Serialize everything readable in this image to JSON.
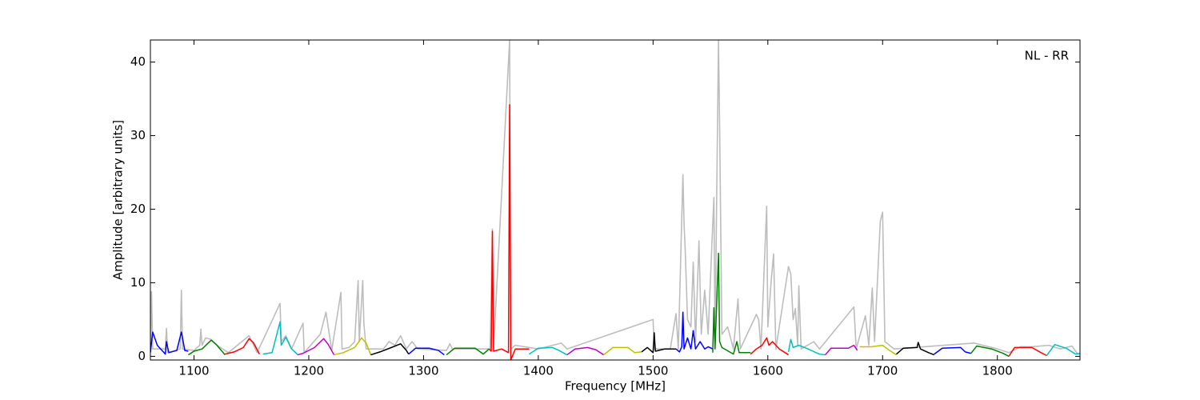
{
  "chart_data": {
    "type": "line",
    "xlabel": "Frequency [MHz]",
    "ylabel": "Amplitude [arbitrary units]",
    "annotation": "NL - RR",
    "xlim": [
      1062,
      1872
    ],
    "ylim": [
      -0.5,
      43
    ],
    "xticks": [
      1100,
      1200,
      1300,
      1400,
      1500,
      1600,
      1700,
      1800
    ],
    "yticks": [
      0,
      10,
      20,
      30,
      40
    ],
    "series": [
      {
        "color": "#bdbdbd",
        "x": [
          1062,
          1063,
          1064,
          1075,
          1076,
          1077,
          1088,
          1089,
          1090,
          1100,
          1105,
          1106,
          1107,
          1110,
          1115,
          1120,
          1130,
          1148,
          1155,
          1175,
          1176,
          1180,
          1185,
          1195,
          1196,
          1210,
          1215,
          1220,
          1228,
          1229,
          1235,
          1240,
          1243,
          1244,
          1247,
          1248,
          1250,
          1265,
          1270,
          1275,
          1280,
          1285,
          1290,
          1295,
          1320,
          1323,
          1325,
          1358,
          1360,
          1361,
          1375,
          1376,
          1380,
          1400,
          1420,
          1425,
          1500,
          1501,
          1515,
          1520,
          1522,
          1526,
          1527,
          1528,
          1530,
          1533,
          1535,
          1537,
          1540,
          1542,
          1545,
          1548,
          1552,
          1553,
          1554,
          1557,
          1558,
          1560,
          1565,
          1570,
          1574,
          1576,
          1590,
          1592,
          1594,
          1599,
          1600,
          1603,
          1605,
          1607,
          1618,
          1620,
          1622,
          1624,
          1626,
          1627,
          1629,
          1640,
          1645,
          1675,
          1677,
          1685,
          1688,
          1691,
          1693,
          1698,
          1700,
          1702,
          1710,
          1780,
          1800,
          1810,
          1820,
          1830,
          1845,
          1855,
          1865,
          1870
        ],
        "values": [
          0.5,
          8.8,
          1,
          1,
          3.8,
          0.5,
          1,
          9,
          1,
          0.8,
          1.5,
          3.7,
          1.5,
          2.5,
          2.3,
          1.5,
          0.5,
          2.8,
          0.5,
          7.2,
          2,
          2.8,
          1,
          4.5,
          0.5,
          3,
          6,
          0.8,
          8.7,
          1,
          1.2,
          2,
          10.3,
          2,
          10.3,
          4.5,
          1,
          1,
          2,
          1.5,
          2.8,
          1,
          2,
          1,
          0.8,
          1.7,
          1,
          1,
          17.3,
          1,
          43,
          1,
          1.5,
          1,
          1.8,
          1,
          5,
          1,
          1,
          5.8,
          1,
          24.7,
          18,
          14.5,
          5,
          4,
          12.8,
          2,
          15.7,
          3,
          9,
          3,
          18,
          21.6,
          2,
          43,
          31,
          3,
          4,
          1,
          7.8,
          1,
          5.7,
          5,
          1,
          20.4,
          4,
          10.4,
          13.9,
          1,
          12.2,
          11.2,
          5,
          6.5,
          1.5,
          9.6,
          1,
          2,
          1,
          6.7,
          1,
          5.5,
          1.5,
          9.3,
          2,
          18.4,
          19.6,
          2,
          1,
          1.8,
          1,
          0.5,
          1.3,
          1.3,
          1.5,
          1,
          1.4,
          0.3
        ]
      },
      {
        "color": "#0000ff",
        "x": [
          1062,
          1064,
          1068,
          1075,
          1076,
          1078,
          1085,
          1089,
          1092,
          1095
        ],
        "values": [
          0.5,
          3.3,
          1.5,
          0.3,
          2,
          0.5,
          0.8,
          3.3,
          0.8,
          0.7
        ]
      },
      {
        "color": "#008000",
        "x": [
          1095,
          1100,
          1107,
          1115,
          1120,
          1127
        ],
        "values": [
          0.2,
          0.7,
          1,
          2.2,
          1.5,
          0.2
        ]
      },
      {
        "color": "#ff0000",
        "x": [
          1127,
          1135,
          1143,
          1148,
          1152,
          1157
        ],
        "values": [
          0.3,
          0.6,
          1.2,
          2.4,
          1.8,
          0.3
        ]
      },
      {
        "color": "#00bfbf",
        "x": [
          1160,
          1168,
          1175,
          1176,
          1180,
          1185,
          1190
        ],
        "values": [
          0.3,
          0.5,
          4.7,
          1.5,
          2.6,
          1,
          0.3
        ]
      },
      {
        "color": "#bf00bf",
        "x": [
          1190,
          1195,
          1205,
          1213,
          1217,
          1222
        ],
        "values": [
          0.2,
          0.4,
          1.2,
          2.4,
          1.6,
          0.2
        ]
      },
      {
        "color": "#bfbf00",
        "x": [
          1222,
          1230,
          1240,
          1246,
          1250,
          1254
        ],
        "values": [
          0.2,
          0.5,
          1.2,
          2.5,
          1.8,
          0.2
        ]
      },
      {
        "color": "#000000",
        "x": [
          1254,
          1262,
          1272,
          1280,
          1285,
          1287
        ],
        "values": [
          0.2,
          0.6,
          1.2,
          1.7,
          0.8,
          0.3
        ]
      },
      {
        "color": "#0000ff",
        "x": [
          1287,
          1293,
          1305,
          1313,
          1318
        ],
        "values": [
          0.3,
          1.1,
          1.1,
          0.8,
          0.2
        ]
      },
      {
        "color": "#008000",
        "x": [
          1320,
          1327,
          1345,
          1352,
          1357
        ],
        "values": [
          0.2,
          1.1,
          1.1,
          0.3,
          1
        ]
      },
      {
        "color": "#ff0000",
        "x": [
          1357,
          1359,
          1360,
          1361,
          1368,
          1374,
          1375,
          1376,
          1380,
          1392
        ],
        "values": [
          1,
          0.7,
          17,
          0.7,
          1,
          0.5,
          34.2,
          -0.5,
          1,
          1
        ]
      },
      {
        "color": "#00bfbf",
        "x": [
          1392,
          1400,
          1412,
          1418,
          1425
        ],
        "values": [
          0.3,
          1.1,
          1.2,
          0.8,
          0.2
        ]
      },
      {
        "color": "#bf00bf",
        "x": [
          1425,
          1432,
          1443,
          1450,
          1457
        ],
        "values": [
          0.2,
          1,
          1.2,
          0.9,
          0.2
        ]
      },
      {
        "color": "#bfbf00",
        "x": [
          1457,
          1465,
          1478,
          1484,
          1490
        ],
        "values": [
          0.2,
          1.2,
          1.2,
          0.5,
          0.6
        ]
      },
      {
        "color": "#000000",
        "x": [
          1490,
          1495,
          1500,
          1501,
          1502,
          1510,
          1520
        ],
        "values": [
          0.6,
          1.2,
          0.5,
          3.2,
          0.7,
          1,
          1
        ]
      },
      {
        "color": "#0000ff",
        "x": [
          1520,
          1523,
          1525,
          1526,
          1527,
          1530,
          1533,
          1535,
          1537,
          1541,
          1545,
          1548,
          1552
        ],
        "values": [
          1,
          0.6,
          1.3,
          6,
          1,
          2.5,
          1,
          3.5,
          1,
          2,
          1,
          1.3,
          1
        ]
      },
      {
        "color": "#008000",
        "x": [
          1552,
          1553,
          1554,
          1557,
          1558,
          1560,
          1570,
          1573,
          1575,
          1585
        ],
        "values": [
          0.5,
          6.6,
          1,
          14,
          2,
          1.2,
          0.3,
          2,
          0.5,
          0.5
        ]
      },
      {
        "color": "#ff0000",
        "x": [
          1585,
          1590,
          1595,
          1599,
          1601,
          1604,
          1610,
          1618
        ],
        "values": [
          0.3,
          1,
          1.5,
          2.5,
          1.5,
          2,
          1,
          0.2
        ]
      },
      {
        "color": "#00bfbf",
        "x": [
          1618,
          1620,
          1622,
          1627,
          1635,
          1645,
          1650
        ],
        "values": [
          0.6,
          2.3,
          1.2,
          1.5,
          1,
          0.3,
          0.2
        ]
      },
      {
        "color": "#bf00bf",
        "x": [
          1650,
          1655,
          1670,
          1675,
          1678
        ],
        "values": [
          0.2,
          1.1,
          1.1,
          1.5,
          0.8
        ]
      },
      {
        "color": "#bfbf00",
        "x": [
          1680,
          1690,
          1700,
          1706,
          1712
        ],
        "values": [
          1.3,
          1.3,
          1.5,
          0.8,
          0.2
        ]
      },
      {
        "color": "#000000",
        "x": [
          1712,
          1718,
          1730,
          1731,
          1733,
          1740,
          1745
        ],
        "values": [
          0.3,
          1.1,
          1.2,
          1.9,
          1,
          0.5,
          0.2
        ]
      },
      {
        "color": "#0000ff",
        "x": [
          1745,
          1752,
          1768,
          1772,
          1777
        ],
        "values": [
          0.3,
          1.1,
          1.2,
          0.6,
          0.4
        ]
      },
      {
        "color": "#008000",
        "x": [
          1777,
          1782,
          1795,
          1805,
          1810
        ],
        "values": [
          0.4,
          1.4,
          1,
          0.4,
          0
        ]
      },
      {
        "color": "#ff0000",
        "x": [
          1810,
          1815,
          1830,
          1838,
          1843
        ],
        "values": [
          0,
          1.2,
          1.2,
          0.5,
          0.1
        ]
      },
      {
        "color": "#00bfbf",
        "x": [
          1843,
          1850,
          1860,
          1868,
          1872
        ],
        "values": [
          0.1,
          1.6,
          1.1,
          0.3,
          0.4
        ]
      }
    ]
  }
}
